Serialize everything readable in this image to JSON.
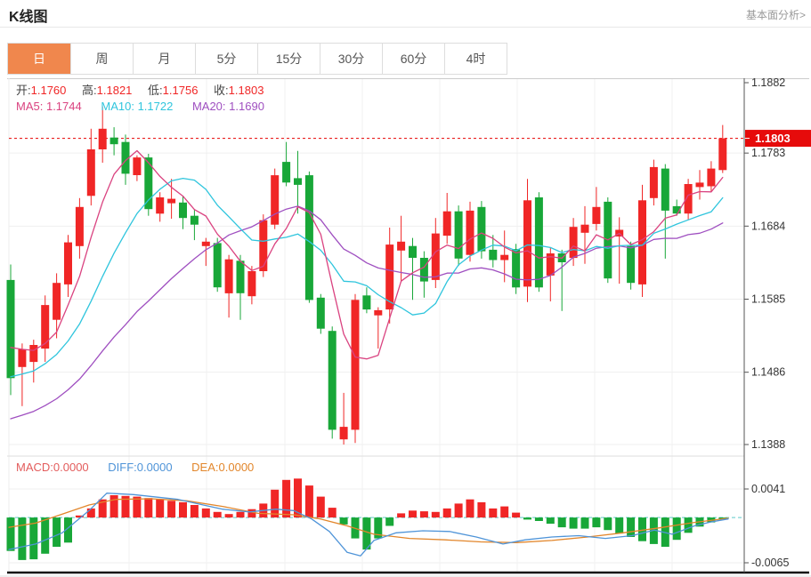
{
  "header": {
    "title": "K线图",
    "link": "基本面分析>"
  },
  "tabs": {
    "items": [
      {
        "id": "day",
        "label": "日",
        "selected": true
      },
      {
        "id": "week",
        "label": "周",
        "selected": false
      },
      {
        "id": "month",
        "label": "月",
        "selected": false
      },
      {
        "id": "5min",
        "label": "5分",
        "selected": false
      },
      {
        "id": "15min",
        "label": "15分",
        "selected": false
      },
      {
        "id": "30min",
        "label": "30分",
        "selected": false
      },
      {
        "id": "60min",
        "label": "60分",
        "selected": false
      },
      {
        "id": "4hour",
        "label": "4时",
        "selected": false
      }
    ]
  },
  "info": {
    "open_label": "开:",
    "open": "1.1760",
    "high_label": "高:",
    "high": "1.1821",
    "low_label": "低:",
    "low": "1.1756",
    "close_label": "收:",
    "close": "1.1803",
    "ma5_label": "MA5:",
    "ma5": "1.1744",
    "ma10_label": "MA10:",
    "ma10": "1.1722",
    "ma20_label": "MA20:",
    "ma20": "1.1690"
  },
  "macd_info": {
    "macd_label": "MACD:",
    "macd": "0.0000",
    "diff_label": "DIFF:",
    "diff": "0.0000",
    "dea_label": "DEA:",
    "dea": "0.0000"
  },
  "colors": {
    "up": "#f02626",
    "down": "#18a738",
    "ma5": "#da4380",
    "ma10": "#2fc5dd",
    "ma20": "#9f4fc0",
    "diff": "#4f94d8",
    "dea": "#e2862b",
    "macd_label": "#e35c5c",
    "tab_selected": "#f0874d",
    "price_flag": "#e60b0b",
    "dashed_price_line": "#e60000",
    "macd_zero_line": "#5fc9c9",
    "axis_text": "#333"
  },
  "chart_data": {
    "type": "candlestick+macd",
    "title": "K线图",
    "legend": [
      "MA5",
      "MA10",
      "MA20",
      "MACD",
      "DIFF",
      "DEA"
    ],
    "price_axis": {
      "max": 1.1882,
      "min": 1.1388,
      "ticks": [
        1.1882,
        1.1783,
        1.1684,
        1.1585,
        1.1486,
        1.1388
      ],
      "current": 1.1803,
      "current_highlighted": true
    },
    "macd_axis": {
      "max": 0.0041,
      "min": -0.0065,
      "ticks": [
        0.0041,
        -0.0065
      ],
      "zero_dashed": true
    },
    "current_ohlc": {
      "open": 1.176,
      "high": 1.1821,
      "low": 1.1756,
      "close": 1.1803
    },
    "ma_values": {
      "ma5": 1.1744,
      "ma10": 1.1722,
      "ma20": 1.169
    },
    "ma_windows": {
      "ma5": 5,
      "ma10": 10,
      "ma20": 20
    },
    "ma_seeds": {
      "ma5": 1.153,
      "ma10": 1.148,
      "ma20": 1.142
    },
    "candles": [
      [
        1.1611,
        1.1632,
        1.1455,
        1.1478
      ],
      [
        1.1493,
        1.1525,
        1.144,
        1.1517
      ],
      [
        1.15,
        1.153,
        1.1472,
        1.1523
      ],
      [
        1.1518,
        1.159,
        1.15,
        1.1577
      ],
      [
        1.1557,
        1.162,
        1.1532,
        1.1607
      ],
      [
        1.1605,
        1.1672,
        1.1588,
        1.1662
      ],
      [
        1.1657,
        1.1722,
        1.164,
        1.171
      ],
      [
        1.1725,
        1.1816,
        1.1712,
        1.1788
      ],
      [
        1.1788,
        1.1846,
        1.177,
        1.1816
      ],
      [
        1.1804,
        1.1818,
        1.178,
        1.1795
      ],
      [
        1.1798,
        1.1808,
        1.174,
        1.1755
      ],
      [
        1.1753,
        1.178,
        1.1745,
        1.1777
      ],
      [
        1.1777,
        1.1782,
        1.1698,
        1.1707
      ],
      [
        1.1701,
        1.173,
        1.169,
        1.1723
      ],
      [
        1.1715,
        1.1748,
        1.1694,
        1.1721
      ],
      [
        1.1716,
        1.1725,
        1.168,
        1.1695
      ],
      [
        1.1698,
        1.1706,
        1.1665,
        1.1686
      ],
      [
        1.1657,
        1.1668,
        1.163,
        1.1663
      ],
      [
        1.1661,
        1.1668,
        1.1595,
        1.1601
      ],
      [
        1.1593,
        1.1645,
        1.156,
        1.1639
      ],
      [
        1.1637,
        1.1645,
        1.1557,
        1.1593
      ],
      [
        1.1589,
        1.163,
        1.1578,
        1.1623
      ],
      [
        1.1623,
        1.17,
        1.1615,
        1.1692
      ],
      [
        1.1686,
        1.1762,
        1.168,
        1.1753
      ],
      [
        1.1771,
        1.1798,
        1.1738,
        1.1743
      ],
      [
        1.1749,
        1.1786,
        1.1701,
        1.174
      ],
      [
        1.1753,
        1.1758,
        1.158,
        1.1584
      ],
      [
        1.1587,
        1.1592,
        1.1538,
        1.1545
      ],
      [
        1.1542,
        1.1548,
        1.1396,
        1.1408
      ],
      [
        1.1395,
        1.1458,
        1.1388,
        1.1412
      ],
      [
        1.1408,
        1.1592,
        1.139,
        1.1584
      ],
      [
        1.159,
        1.1601,
        1.1566,
        1.1571
      ],
      [
        1.1563,
        1.1574,
        1.1518,
        1.157
      ],
      [
        1.1571,
        1.1682,
        1.1552,
        1.1659
      ],
      [
        1.1651,
        1.1698,
        1.1608,
        1.1663
      ],
      [
        1.1657,
        1.1668,
        1.1584,
        1.1641
      ],
      [
        1.1641,
        1.165,
        1.1587,
        1.1609
      ],
      [
        1.1611,
        1.1695,
        1.16,
        1.1674
      ],
      [
        1.1671,
        1.1729,
        1.166,
        1.1704
      ],
      [
        1.1704,
        1.1712,
        1.163,
        1.164
      ],
      [
        1.1645,
        1.1717,
        1.1636,
        1.1705
      ],
      [
        1.171,
        1.1718,
        1.164,
        1.165
      ],
      [
        1.1652,
        1.1672,
        1.1628,
        1.1638
      ],
      [
        1.1638,
        1.1678,
        1.1608,
        1.1645
      ],
      [
        1.1653,
        1.166,
        1.1592,
        1.1601
      ],
      [
        1.1602,
        1.1748,
        1.1581,
        1.1719
      ],
      [
        1.1723,
        1.173,
        1.1595,
        1.1601
      ],
      [
        1.1617,
        1.1655,
        1.1582,
        1.1647
      ],
      [
        1.1647,
        1.1652,
        1.1569,
        1.1635
      ],
      [
        1.1641,
        1.1695,
        1.163,
        1.1683
      ],
      [
        1.1675,
        1.1711,
        1.1633,
        1.1686
      ],
      [
        1.1687,
        1.1737,
        1.1678,
        1.171
      ],
      [
        1.1717,
        1.1723,
        1.1607,
        1.1613
      ],
      [
        1.167,
        1.1696,
        1.1606,
        1.1679
      ],
      [
        1.1657,
        1.1663,
        1.1598,
        1.1607
      ],
      [
        1.1605,
        1.174,
        1.1588,
        1.1719
      ],
      [
        1.1722,
        1.1774,
        1.1712,
        1.1764
      ],
      [
        1.1762,
        1.1768,
        1.164,
        1.1705
      ],
      [
        1.1711,
        1.172,
        1.1698,
        1.1701
      ],
      [
        1.1701,
        1.1748,
        1.1693,
        1.1741
      ],
      [
        1.1737,
        1.176,
        1.172,
        1.1743
      ],
      [
        1.1738,
        1.1772,
        1.173,
        1.1762
      ],
      [
        1.176,
        1.1821,
        1.1756,
        1.1803
      ]
    ],
    "macd_hist": [
      -0.0048,
      -0.0061,
      -0.006,
      -0.0052,
      -0.0042,
      -0.0036,
      0.0003,
      0.0013,
      0.0026,
      0.0032,
      0.0031,
      0.003,
      0.0028,
      0.0026,
      0.0024,
      0.0022,
      0.0018,
      0.0013,
      0.0008,
      0.0005,
      0.0008,
      0.0012,
      0.002,
      0.004,
      0.0054,
      0.0056,
      0.0046,
      0.003,
      0.0014,
      -0.001,
      -0.003,
      -0.0046,
      -0.003,
      -0.0012,
      0.0006,
      0.001,
      0.0009,
      0.0008,
      0.0013,
      0.002,
      0.0026,
      0.0022,
      0.0013,
      0.0016,
      0.0007,
      -0.0003,
      -0.0005,
      -0.0009,
      -0.0014,
      -0.0016,
      -0.0016,
      -0.0014,
      -0.0018,
      -0.0023,
      -0.0028,
      -0.0034,
      -0.0038,
      -0.0042,
      -0.0032,
      -0.0022,
      -0.0013,
      -0.0007,
      -0.0002
    ],
    "diff_line": [
      [
        10,
        -0.0046
      ],
      [
        40,
        -0.0038
      ],
      [
        70,
        -0.0022
      ],
      [
        100,
        0.001
      ],
      [
        120,
        0.0035
      ],
      [
        150,
        0.0033
      ],
      [
        200,
        0.0026
      ],
      [
        250,
        0.0012
      ],
      [
        280,
        0.0008
      ],
      [
        310,
        0.0012
      ],
      [
        330,
        0.001
      ],
      [
        350,
        -0.0002
      ],
      [
        370,
        -0.002
      ],
      [
        390,
        -0.005
      ],
      [
        405,
        -0.0055
      ],
      [
        420,
        -0.0033
      ],
      [
        445,
        -0.0022
      ],
      [
        475,
        -0.0019
      ],
      [
        505,
        -0.002
      ],
      [
        535,
        -0.0028
      ],
      [
        565,
        -0.0038
      ],
      [
        590,
        -0.0032
      ],
      [
        620,
        -0.0028
      ],
      [
        650,
        -0.0026
      ],
      [
        680,
        -0.003
      ],
      [
        710,
        -0.0026
      ],
      [
        735,
        -0.0018
      ],
      [
        755,
        -0.0024
      ],
      [
        780,
        -0.0012
      ],
      [
        800,
        -0.0006
      ],
      [
        818,
        -0.0002
      ]
    ],
    "dea_line": [
      [
        10,
        -0.0014
      ],
      [
        40,
        -0.0008
      ],
      [
        70,
        0.0005
      ],
      [
        100,
        0.0018
      ],
      [
        130,
        0.0026
      ],
      [
        170,
        0.0027
      ],
      [
        210,
        0.0024
      ],
      [
        250,
        0.0016
      ],
      [
        290,
        0.0006
      ],
      [
        330,
        0.0004
      ],
      [
        360,
        -0.0002
      ],
      [
        390,
        -0.0012
      ],
      [
        420,
        -0.0024
      ],
      [
        460,
        -0.003
      ],
      [
        500,
        -0.0032
      ],
      [
        540,
        -0.0035
      ],
      [
        580,
        -0.0036
      ],
      [
        620,
        -0.0033
      ],
      [
        660,
        -0.0028
      ],
      [
        700,
        -0.0022
      ],
      [
        740,
        -0.0015
      ],
      [
        780,
        -0.0007
      ],
      [
        818,
        -0.0001
      ]
    ]
  }
}
